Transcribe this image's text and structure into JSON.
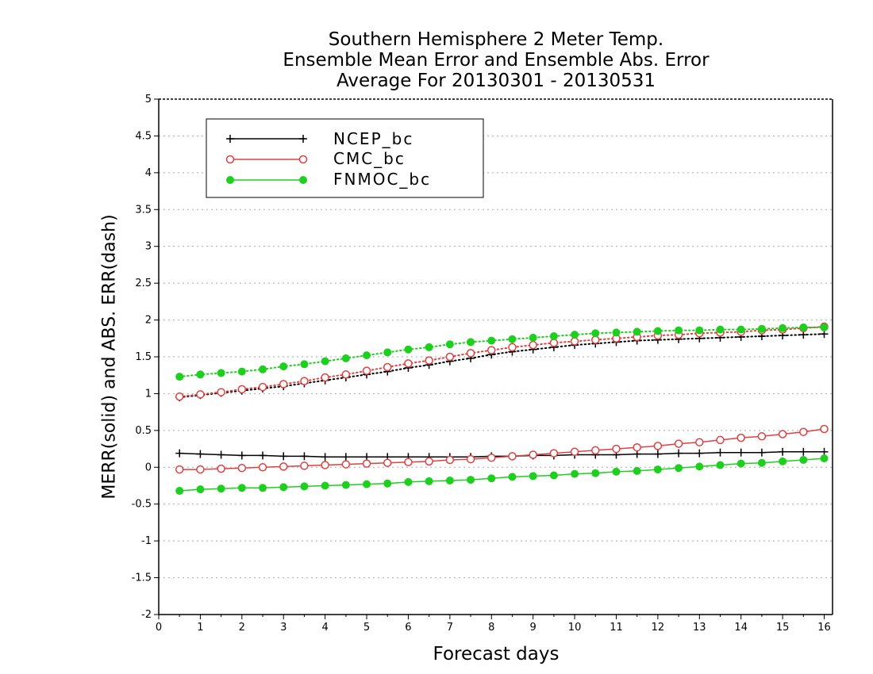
{
  "chart_data": {
    "type": "line",
    "title_lines": [
      "Southern Hemisphere 2 Meter Temp.",
      "Ensemble Mean Error and Ensemble Abs. Error",
      "Average For 20130301 - 20130531"
    ],
    "xlabel": "Forecast days",
    "ylabel": "MERR(solid) and ABS. ERR(dash)",
    "xlim": [
      0,
      16.2
    ],
    "ylim": [
      -2,
      5
    ],
    "xticks": [
      "0",
      "1",
      "2",
      "3",
      "4",
      "5",
      "6",
      "7",
      "8",
      "9",
      "10",
      "11",
      "12",
      "13",
      "14",
      "15",
      "16"
    ],
    "yticks": [
      "-2",
      "-1.5",
      "-1",
      "-0.5",
      "0",
      "0.5",
      "1",
      "1.5",
      "2",
      "2.5",
      "3",
      "3.5",
      "4",
      "4.5",
      "5"
    ],
    "grid": "horizontal dotted",
    "legend_position": "top-left",
    "x": [
      0.5,
      1,
      1.5,
      2,
      2.5,
      3,
      3.5,
      4,
      4.5,
      5,
      5.5,
      6,
      6.5,
      7,
      7.5,
      8,
      8.5,
      9,
      9.5,
      10,
      10.5,
      11,
      11.5,
      12,
      12.5,
      13,
      13.5,
      14,
      14.5,
      15,
      15.5,
      16
    ],
    "series": [
      {
        "name": "NCEP_bc",
        "color": "#000000",
        "marker": "plus",
        "merr": [
          0.19,
          0.18,
          0.17,
          0.16,
          0.16,
          0.15,
          0.15,
          0.14,
          0.14,
          0.14,
          0.14,
          0.14,
          0.14,
          0.14,
          0.14,
          0.15,
          0.15,
          0.16,
          0.16,
          0.17,
          0.17,
          0.17,
          0.18,
          0.18,
          0.19,
          0.19,
          0.2,
          0.2,
          0.2,
          0.21,
          0.21,
          0.21
        ],
        "abs_err": [
          0.95,
          0.98,
          1.01,
          1.04,
          1.07,
          1.1,
          1.14,
          1.18,
          1.22,
          1.26,
          1.3,
          1.35,
          1.39,
          1.44,
          1.48,
          1.53,
          1.57,
          1.6,
          1.63,
          1.66,
          1.68,
          1.7,
          1.72,
          1.73,
          1.74,
          1.75,
          1.76,
          1.77,
          1.78,
          1.79,
          1.8,
          1.81
        ]
      },
      {
        "name": "CMC_bc",
        "color": "#e04040",
        "marker": "open-circle",
        "merr": [
          -0.03,
          -0.03,
          -0.02,
          -0.01,
          0.0,
          0.01,
          0.02,
          0.03,
          0.04,
          0.05,
          0.06,
          0.07,
          0.08,
          0.1,
          0.11,
          0.13,
          0.15,
          0.17,
          0.19,
          0.21,
          0.23,
          0.25,
          0.27,
          0.29,
          0.32,
          0.34,
          0.37,
          0.4,
          0.42,
          0.45,
          0.48,
          0.52
        ],
        "abs_err": [
          0.96,
          0.99,
          1.02,
          1.06,
          1.09,
          1.13,
          1.17,
          1.22,
          1.26,
          1.31,
          1.36,
          1.41,
          1.45,
          1.5,
          1.55,
          1.59,
          1.63,
          1.66,
          1.69,
          1.71,
          1.73,
          1.75,
          1.77,
          1.79,
          1.8,
          1.82,
          1.83,
          1.84,
          1.86,
          1.87,
          1.89,
          1.91
        ]
      },
      {
        "name": "FNMOC_bc",
        "color": "#1ed01e",
        "marker": "filled-circle",
        "merr": [
          -0.32,
          -0.3,
          -0.29,
          -0.28,
          -0.28,
          -0.27,
          -0.26,
          -0.25,
          -0.24,
          -0.23,
          -0.22,
          -0.2,
          -0.19,
          -0.18,
          -0.17,
          -0.15,
          -0.13,
          -0.12,
          -0.11,
          -0.09,
          -0.08,
          -0.06,
          -0.05,
          -0.03,
          -0.01,
          0.01,
          0.03,
          0.05,
          0.06,
          0.08,
          0.1,
          0.12
        ],
        "abs_err": [
          1.23,
          1.26,
          1.28,
          1.3,
          1.33,
          1.37,
          1.4,
          1.44,
          1.48,
          1.52,
          1.56,
          1.6,
          1.63,
          1.67,
          1.7,
          1.72,
          1.74,
          1.76,
          1.78,
          1.8,
          1.82,
          1.83,
          1.84,
          1.85,
          1.86,
          1.86,
          1.87,
          1.87,
          1.88,
          1.89,
          1.9,
          1.9
        ]
      }
    ]
  }
}
